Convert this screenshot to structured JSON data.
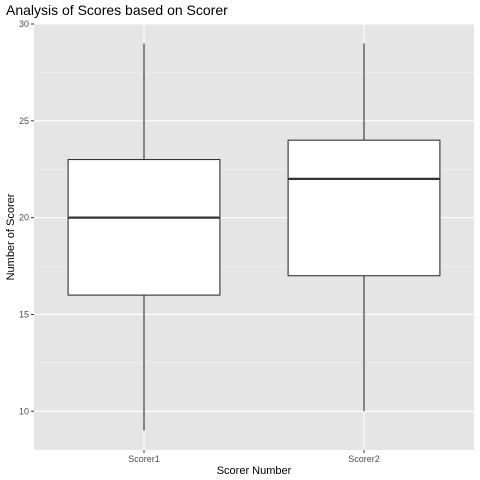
{
  "chart_data": {
    "type": "boxplot",
    "title": "Analysis of Scores based on Scorer",
    "xlabel": "Scorer Number",
    "ylabel": "Number of Scorer",
    "categories": [
      "Scorer1",
      "Scorer2"
    ],
    "boxes": [
      {
        "category": "Scorer1",
        "min": 9,
        "q1": 16,
        "median": 20,
        "q3": 23,
        "max": 29
      },
      {
        "category": "Scorer2",
        "min": 10,
        "q1": 17,
        "median": 22,
        "q3": 24,
        "max": 29
      }
    ],
    "ylim": [
      8,
      30
    ],
    "yticks": [
      10,
      15,
      20,
      25,
      30
    ],
    "grid": true,
    "legend": "none",
    "colors": {
      "panel_background": "#e5e5e5",
      "grid_major": "#ffffff",
      "box_fill": "#ffffff",
      "box_stroke": "#333333",
      "tick_text": "#4d4d4d"
    }
  }
}
